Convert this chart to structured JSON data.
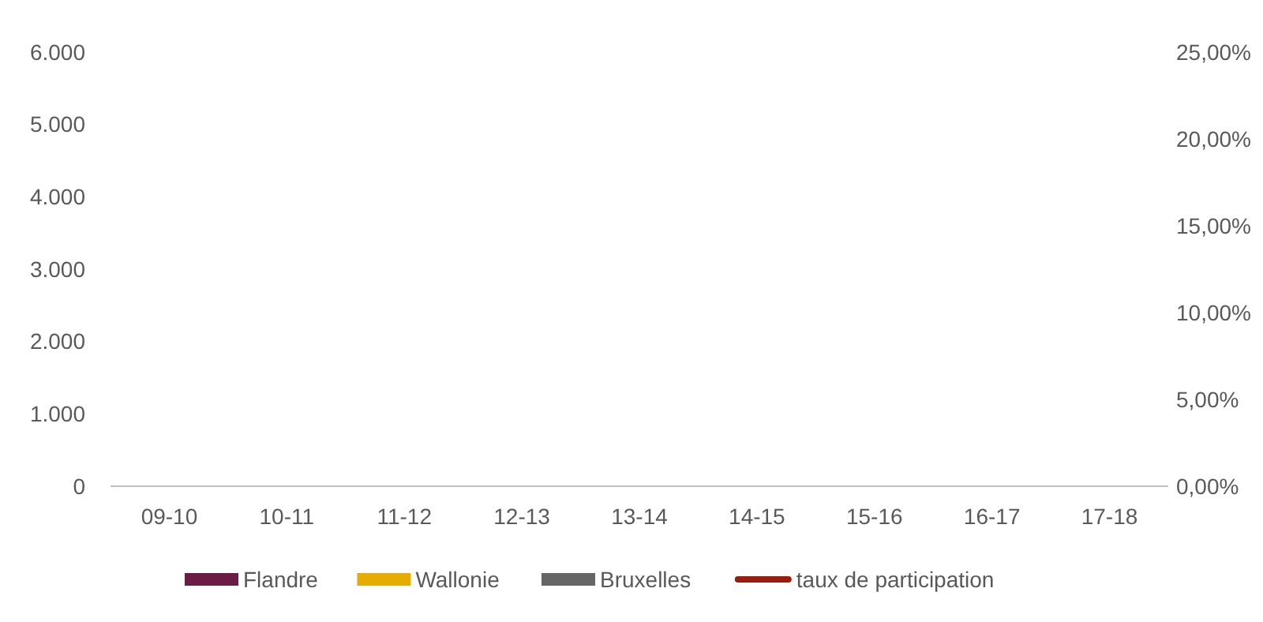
{
  "chart_data": {
    "type": "bar",
    "categories": [
      "09-10",
      "10-11",
      "11-12",
      "12-13",
      "13-14",
      "14-15",
      "15-16",
      "16-17",
      "17-18"
    ],
    "series": [
      {
        "name": "Flandre",
        "color": "#6b1c45",
        "values": [
          null,
          null,
          null,
          null,
          null,
          null,
          null,
          null,
          null
        ]
      },
      {
        "name": "Wallonie",
        "color": "#e6ac00",
        "values": [
          null,
          null,
          null,
          null,
          null,
          null,
          null,
          null,
          null
        ]
      },
      {
        "name": "Bruxelles",
        "color": "#666666",
        "values": [
          null,
          null,
          null,
          null,
          null,
          null,
          null,
          null,
          null
        ]
      },
      {
        "name": "taux de participation",
        "type": "line",
        "axis": "y2",
        "color": "#9b1b0f",
        "values": [
          null,
          null,
          null,
          null,
          null,
          null,
          null,
          null,
          null
        ]
      }
    ],
    "ylim": [
      0,
      6000
    ],
    "yticks": [
      {
        "value": 0,
        "label": "0"
      },
      {
        "value": 1000,
        "label": "1.000"
      },
      {
        "value": 2000,
        "label": "2.000"
      },
      {
        "value": 3000,
        "label": "3.000"
      },
      {
        "value": 4000,
        "label": "4.000"
      },
      {
        "value": 5000,
        "label": "5.000"
      },
      {
        "value": 6000,
        "label": "6.000"
      }
    ],
    "y2lim": [
      0,
      25
    ],
    "y2ticks": [
      {
        "value": 0,
        "label": "0,00%"
      },
      {
        "value": 5,
        "label": "5,00%"
      },
      {
        "value": 10,
        "label": "10,00%"
      },
      {
        "value": 15,
        "label": "15,00%"
      },
      {
        "value": 20,
        "label": "20,00%"
      },
      {
        "value": 25,
        "label": "25,00%"
      }
    ],
    "grid": false,
    "legend": "bottom"
  }
}
